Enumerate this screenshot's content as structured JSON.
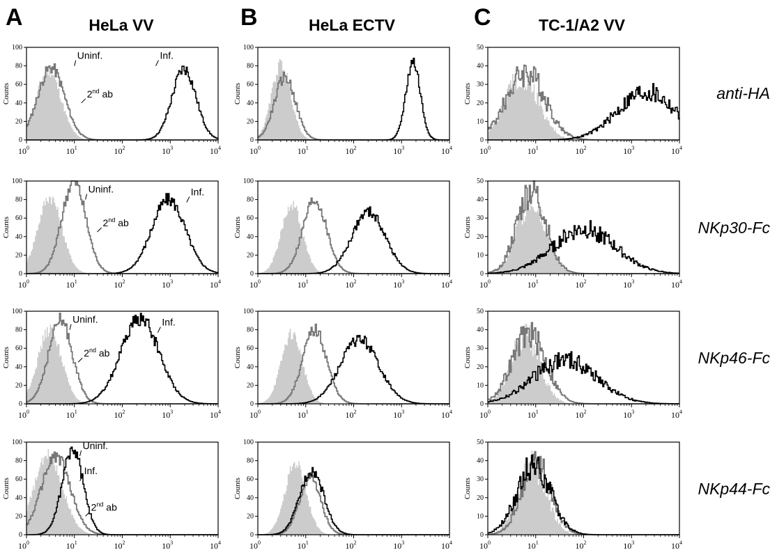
{
  "colors": {
    "filled": "#cccccc",
    "uninf": "#777777",
    "inf": "#000000"
  },
  "panel_letters": [
    "A",
    "B",
    "C"
  ],
  "row_labels": [
    "anti-HA",
    "NKp30-Fc",
    "NKp46-Fc",
    "NKp44-Fc"
  ],
  "chart_data": [
    {
      "id": "A1",
      "type": "area",
      "title": "HeLa VV",
      "panel_letter": "A",
      "ylabel": "Counts",
      "xscale": "log",
      "xlim": [
        1,
        10000
      ],
      "ylim": [
        0,
        100
      ],
      "yticks": [
        0,
        20,
        40,
        60,
        80,
        100
      ],
      "series": [
        {
          "name": "2nd ab",
          "style": "filled",
          "mode": 2.8,
          "sigma": 0.26,
          "peak": 75
        },
        {
          "name": "Uninf.",
          "style": "uninf",
          "mode": 3.2,
          "sigma": 0.28,
          "peak": 78
        },
        {
          "name": "Inf.",
          "style": "inf",
          "mode": 1900,
          "sigma": 0.25,
          "peak": 77
        }
      ],
      "annotations": [
        {
          "text": "Uninf.",
          "x": 10,
          "y": 80
        },
        {
          "text": "Inf.",
          "x": 500,
          "y": 80
        },
        {
          "text": "2nd ab",
          "x": 14,
          "y": 40
        }
      ]
    },
    {
      "id": "A2",
      "type": "area",
      "title": "",
      "panel_letter": "",
      "ylabel": "Counts",
      "xscale": "log",
      "xlim": [
        1,
        10000
      ],
      "ylim": [
        0,
        100
      ],
      "yticks": [
        0,
        20,
        40,
        60,
        80,
        100
      ],
      "series": [
        {
          "name": "2nd ab",
          "style": "filled",
          "mode": 3,
          "sigma": 0.25,
          "peak": 83
        },
        {
          "name": "Uninf.",
          "style": "uninf",
          "mode": 9.5,
          "sigma": 0.25,
          "peak": 100
        },
        {
          "name": "Inf.",
          "style": "inf",
          "mode": 900,
          "sigma": 0.35,
          "peak": 80
        }
      ],
      "annotations": [
        {
          "text": "Uninf.",
          "x": 17,
          "y": 80
        },
        {
          "text": "Inf.",
          "x": 2200,
          "y": 77
        },
        {
          "text": "2nd ab",
          "x": 30,
          "y": 45
        }
      ]
    },
    {
      "id": "A3",
      "type": "area",
      "title": "",
      "panel_letter": "",
      "ylabel": "Counts",
      "xscale": "log",
      "xlim": [
        1,
        10000
      ],
      "ylim": [
        0,
        100
      ],
      "yticks": [
        0,
        20,
        40,
        60,
        80,
        100
      ],
      "series": [
        {
          "name": "2nd ab",
          "style": "filled",
          "mode": 3,
          "sigma": 0.25,
          "peak": 80
        },
        {
          "name": "Uninf.",
          "style": "uninf",
          "mode": 5,
          "sigma": 0.25,
          "peak": 90
        },
        {
          "name": "Inf.",
          "style": "inf",
          "mode": 230,
          "sigma": 0.4,
          "peak": 92
        }
      ],
      "annotations": [
        {
          "text": "Uninf.",
          "x": 8,
          "y": 80
        },
        {
          "text": "Inf.",
          "x": 550,
          "y": 77
        },
        {
          "text": "2nd ab",
          "x": 12,
          "y": 45
        }
      ]
    },
    {
      "id": "A4",
      "type": "area",
      "title": "",
      "panel_letter": "",
      "ylabel": "Counts",
      "xscale": "log",
      "xlim": [
        1,
        10000
      ],
      "ylim": [
        0,
        100
      ],
      "yticks": [
        0,
        20,
        40,
        60,
        80,
        100
      ],
      "series": [
        {
          "name": "2nd ab",
          "style": "filled",
          "mode": 2.8,
          "sigma": 0.3,
          "peak": 85
        },
        {
          "name": "Uninf.",
          "style": "uninf",
          "mode": 4,
          "sigma": 0.3,
          "peak": 85
        },
        {
          "name": "Inf.",
          "style": "inf",
          "mode": 9,
          "sigma": 0.22,
          "peak": 92
        }
      ],
      "annotations": [
        {
          "text": "Uninf.",
          "x": 13,
          "y": 85
        },
        {
          "text": "Inf.",
          "x": 13,
          "y": 58
        },
        {
          "text": "2nd ab",
          "x": 17,
          "y": 20
        }
      ]
    },
    {
      "id": "B1",
      "type": "area",
      "title": "HeLa ECTV",
      "panel_letter": "B",
      "ylabel": "Counts",
      "xscale": "log",
      "xlim": [
        1,
        10000
      ],
      "ylim": [
        0,
        100
      ],
      "yticks": [
        0,
        20,
        40,
        60,
        80,
        100
      ],
      "series": [
        {
          "name": "2nd ab",
          "style": "filled",
          "mode": 3,
          "sigma": 0.2,
          "peak": 82
        },
        {
          "name": "Uninf.",
          "style": "uninf",
          "mode": 3.6,
          "sigma": 0.22,
          "peak": 68
        },
        {
          "name": "Inf.",
          "style": "inf",
          "mode": 1700,
          "sigma": 0.15,
          "peak": 85
        }
      ],
      "annotations": []
    },
    {
      "id": "B2",
      "type": "area",
      "title": "",
      "panel_letter": "",
      "ylabel": "Counts",
      "xscale": "log",
      "xlim": [
        1,
        10000
      ],
      "ylim": [
        0,
        100
      ],
      "yticks": [
        0,
        20,
        40,
        60,
        80,
        100
      ],
      "series": [
        {
          "name": "2nd ab",
          "style": "filled",
          "mode": 5,
          "sigma": 0.22,
          "peak": 75
        },
        {
          "name": "Uninf.",
          "style": "uninf",
          "mode": 15,
          "sigma": 0.25,
          "peak": 80
        },
        {
          "name": "Inf.",
          "style": "inf",
          "mode": 200,
          "sigma": 0.35,
          "peak": 67
        }
      ],
      "annotations": []
    },
    {
      "id": "B3",
      "type": "area",
      "title": "",
      "panel_letter": "",
      "ylabel": "Counts",
      "xscale": "log",
      "xlim": [
        1,
        10000
      ],
      "ylim": [
        0,
        100
      ],
      "yticks": [
        0,
        20,
        40,
        60,
        80,
        100
      ],
      "series": [
        {
          "name": "2nd ab",
          "style": "filled",
          "mode": 5,
          "sigma": 0.22,
          "peak": 76
        },
        {
          "name": "Uninf.",
          "style": "uninf",
          "mode": 15,
          "sigma": 0.25,
          "peak": 80
        },
        {
          "name": "Inf.",
          "style": "inf",
          "mode": 130,
          "sigma": 0.4,
          "peak": 70
        }
      ],
      "annotations": []
    },
    {
      "id": "B4",
      "type": "area",
      "title": "",
      "panel_letter": "",
      "ylabel": "Counts",
      "xscale": "log",
      "xlim": [
        1,
        10000
      ],
      "ylim": [
        0,
        100
      ],
      "yticks": [
        0,
        20,
        40,
        60,
        80,
        100
      ],
      "series": [
        {
          "name": "2nd ab",
          "style": "filled",
          "mode": 6,
          "sigma": 0.22,
          "peak": 78
        },
        {
          "name": "Uninf.",
          "style": "uninf",
          "mode": 12,
          "sigma": 0.22,
          "peak": 62
        },
        {
          "name": "Inf.",
          "style": "inf",
          "mode": 13,
          "sigma": 0.25,
          "peak": 70
        }
      ],
      "annotations": []
    },
    {
      "id": "C1",
      "type": "area",
      "title": "TC-1/A2 VV",
      "panel_letter": "C",
      "ylabel": "Counts",
      "xscale": "log",
      "xlim": [
        1,
        10000
      ],
      "ylim": [
        0,
        50
      ],
      "yticks": [
        0,
        10,
        20,
        30,
        40,
        50
      ],
      "series": [
        {
          "name": "2nd ab",
          "style": "filled",
          "mode": 5,
          "sigma": 0.35,
          "peak": 35
        },
        {
          "name": "Uninf.",
          "style": "uninf",
          "mode": 6,
          "sigma": 0.4,
          "peak": 37
        },
        {
          "name": "Inf.",
          "style": "inf",
          "mode": 2000,
          "sigma": 0.6,
          "peak": 26
        }
      ],
      "annotations": []
    },
    {
      "id": "C2",
      "type": "area",
      "title": "",
      "panel_letter": "",
      "ylabel": "Counts",
      "xscale": "log",
      "xlim": [
        1,
        10000
      ],
      "ylim": [
        0,
        50
      ],
      "yticks": [
        0,
        10,
        20,
        30,
        40,
        50
      ],
      "series": [
        {
          "name": "2nd ab",
          "style": "filled",
          "mode": 8,
          "sigma": 0.3,
          "peak": 40
        },
        {
          "name": "Uninf.",
          "style": "uninf",
          "mode": 8,
          "sigma": 0.3,
          "peak": 45
        },
        {
          "name": "Inf.",
          "style": "inf",
          "mode": 100,
          "sigma": 0.65,
          "peak": 24
        }
      ],
      "annotations": []
    },
    {
      "id": "C3",
      "type": "area",
      "title": "",
      "panel_letter": "",
      "ylabel": "Counts",
      "xscale": "log",
      "xlim": [
        1,
        10000
      ],
      "ylim": [
        0,
        50
      ],
      "yticks": [
        0,
        10,
        20,
        30,
        40,
        50
      ],
      "series": [
        {
          "name": "2nd ab",
          "style": "filled",
          "mode": 6,
          "sigma": 0.3,
          "peak": 37
        },
        {
          "name": "Uninf.",
          "style": "uninf",
          "mode": 7,
          "sigma": 0.35,
          "peak": 38
        },
        {
          "name": "Inf.",
          "style": "inf",
          "mode": 40,
          "sigma": 0.65,
          "peak": 24
        }
      ],
      "annotations": []
    },
    {
      "id": "C4",
      "type": "area",
      "title": "",
      "panel_letter": "",
      "ylabel": "Counts",
      "xscale": "log",
      "xlim": [
        1,
        10000
      ],
      "ylim": [
        0,
        50
      ],
      "yticks": [
        0,
        10,
        20,
        30,
        40,
        50
      ],
      "series": [
        {
          "name": "2nd ab",
          "style": "filled",
          "mode": 8,
          "sigma": 0.3,
          "peak": 38
        },
        {
          "name": "Uninf.",
          "style": "uninf",
          "mode": 10,
          "sigma": 0.3,
          "peak": 40
        },
        {
          "name": "Inf.",
          "style": "inf",
          "mode": 9,
          "sigma": 0.35,
          "peak": 38
        }
      ],
      "annotations": []
    }
  ]
}
